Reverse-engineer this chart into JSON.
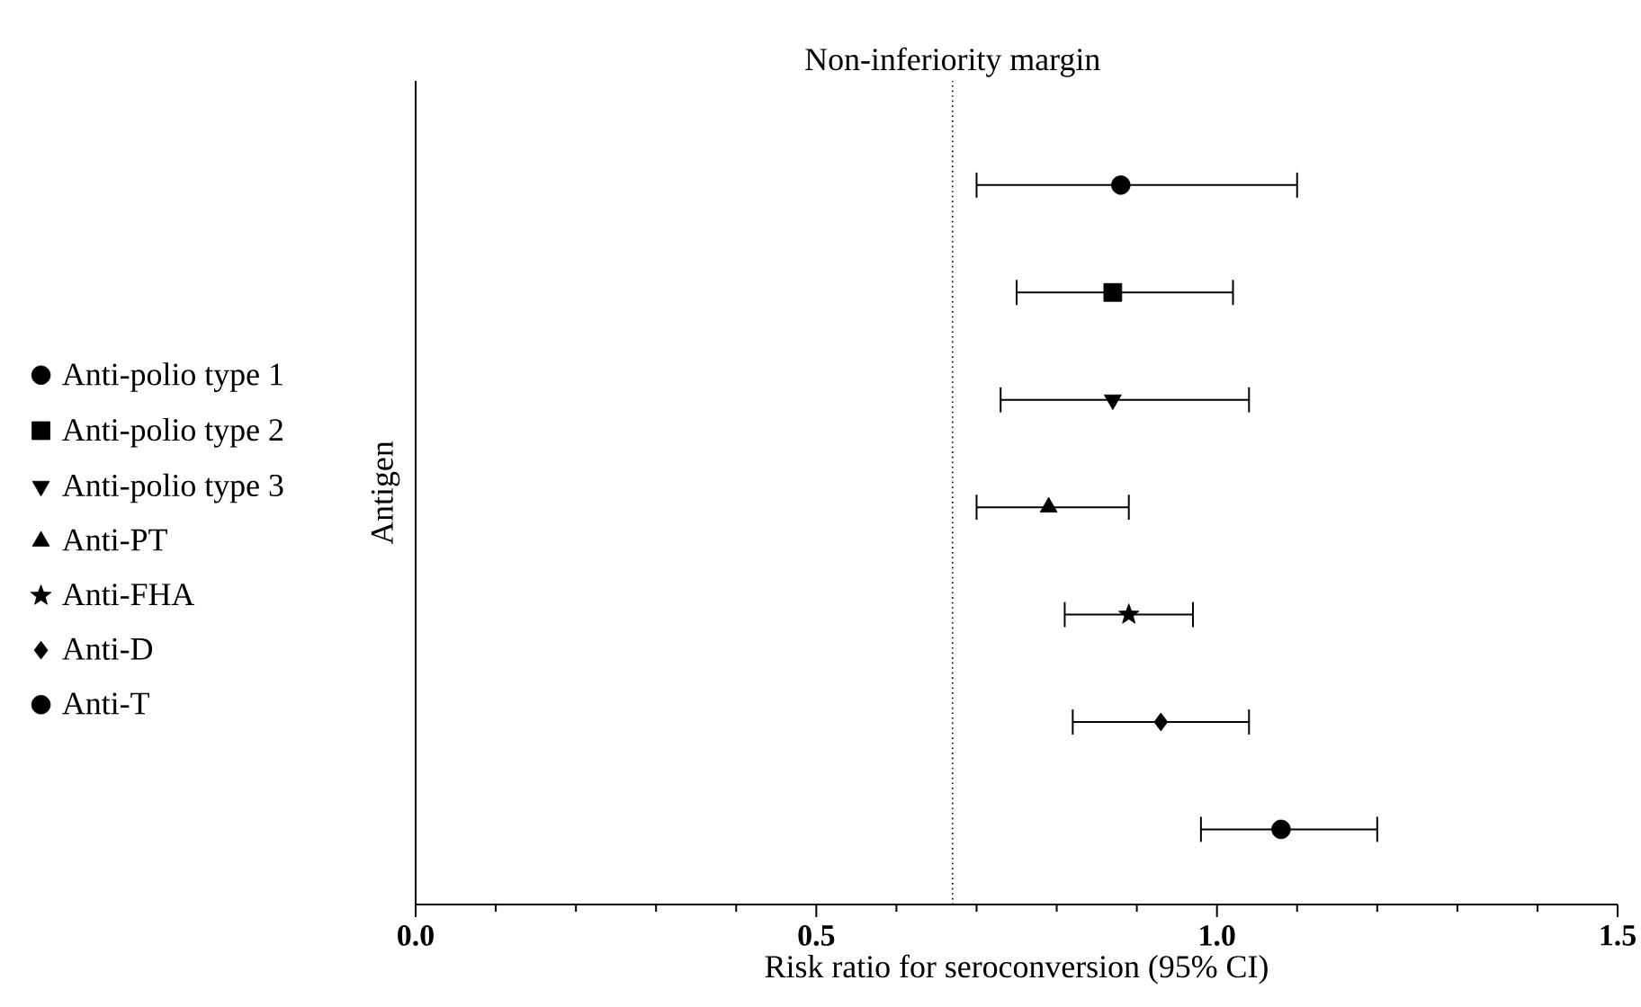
{
  "chart_data": {
    "type": "scatter",
    "orientation": "horizontal",
    "xlabel": "Risk ratio for seroconversion (95% CI)",
    "ylabel": "Antigen",
    "categories": [
      null,
      null,
      null,
      null,
      null,
      null,
      null
    ],
    "xlim": [
      0,
      1.5
    ],
    "xticks": [
      {
        "value": 0,
        "label": "0.0"
      },
      0.5,
      {
        "value": 1,
        "label": "1.0"
      },
      1.5
    ],
    "tick_labels": "x",
    "legend": "left",
    "ref_lines": [
      {
        "axis": "x",
        "value": 0.67,
        "label": "Non-inferiority margin",
        "line_style": "dotted",
        "color": "#000000"
      }
    ],
    "series": [
      {
        "name": "Anti-polio type 1",
        "color": "#000000",
        "marker": "circle",
        "values": [
          0.88,
          null,
          null,
          null,
          null,
          null,
          null
        ],
        "errors": [
          [
            0.7,
            1.1
          ],
          null,
          null,
          null,
          null,
          null,
          null
        ]
      },
      {
        "name": "Anti-polio type 2",
        "color": "#000000",
        "marker": "square",
        "values": [
          null,
          0.87,
          null,
          null,
          null,
          null,
          null
        ],
        "errors": [
          null,
          [
            0.75,
            1.02
          ],
          null,
          null,
          null,
          null,
          null
        ]
      },
      {
        "name": "Anti-polio type 3",
        "color": "#000000",
        "marker": "triangle-down",
        "values": [
          null,
          null,
          0.87,
          null,
          null,
          null,
          null
        ],
        "errors": [
          null,
          null,
          [
            0.73,
            1.04
          ],
          null,
          null,
          null,
          null
        ]
      },
      {
        "name": "Anti-PT",
        "color": "#000000",
        "marker": "triangle",
        "values": [
          null,
          null,
          null,
          0.79,
          null,
          null,
          null
        ],
        "errors": [
          null,
          null,
          null,
          [
            0.7,
            0.89
          ],
          null,
          null,
          null
        ]
      },
      {
        "name": "Anti-FHA",
        "color": "#000000",
        "marker": "star",
        "values": [
          null,
          null,
          null,
          null,
          0.89,
          null,
          null
        ],
        "errors": [
          null,
          null,
          null,
          null,
          [
            0.81,
            0.97
          ],
          null,
          null
        ]
      },
      {
        "name": "Anti-D",
        "color": "#000000",
        "marker": "diamond",
        "values": [
          null,
          null,
          null,
          null,
          null,
          0.93,
          null
        ],
        "errors": [
          null,
          null,
          null,
          null,
          null,
          [
            0.82,
            1.04
          ],
          null
        ]
      },
      {
        "name": "Anti-T",
        "color": "#000000",
        "marker": "circle",
        "values": [
          null,
          null,
          null,
          null,
          null,
          null,
          1.08
        ],
        "errors": [
          null,
          null,
          null,
          null,
          null,
          null,
          [
            0.98,
            1.2
          ]
        ]
      }
    ]
  }
}
